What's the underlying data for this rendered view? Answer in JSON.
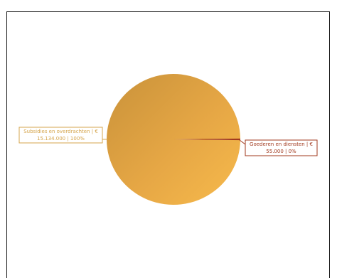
{
  "chart_data": {
    "type": "pie",
    "title": "",
    "slices": [
      {
        "label_line1": "Subsidies en overdrachten | €",
        "label_line2": "15.134.000 | 100%",
        "value": 15134000,
        "percent_label": "100%",
        "color": "#E6A745",
        "label_color": "#D5A54D"
      },
      {
        "label_line1": "Goederen en diensten | €",
        "label_line2": "55.000 | 0%",
        "value": 55000,
        "percent_label": "0%",
        "color": "#A1391E",
        "label_color": "#A1391E"
      }
    ]
  }
}
